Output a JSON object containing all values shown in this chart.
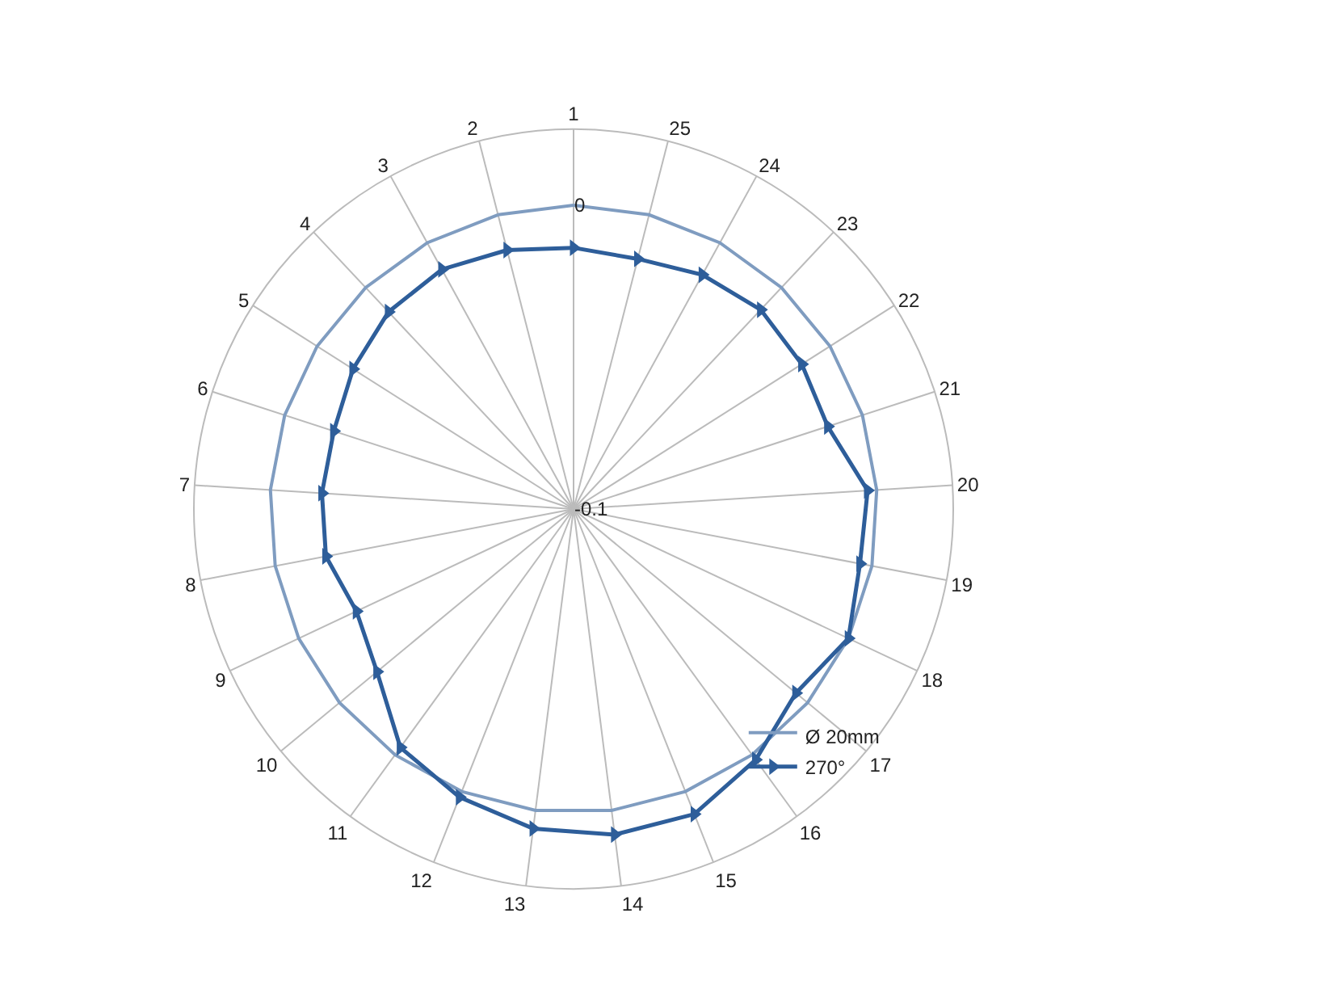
{
  "chart_data": {
    "type": "radar",
    "categories": [
      "1",
      "25",
      "24",
      "23",
      "22",
      "21",
      "20",
      "19",
      "18",
      "17",
      "16",
      "15",
      "14",
      "13",
      "12",
      "11",
      "10",
      "9",
      "8",
      "7",
      "6",
      "5",
      "4",
      "3",
      "2"
    ],
    "series": [
      {
        "name": "Ø 20mm",
        "color": "#7f9cc0",
        "marker": "none",
        "values": [
          0,
          0,
          0,
          0,
          0,
          0,
          0,
          0,
          0,
          0,
          0,
          0,
          0,
          0,
          0,
          0,
          0,
          0,
          0,
          0,
          0,
          0,
          0,
          0,
          0
        ]
      },
      {
        "name": "270°",
        "color": "#2e5e9a",
        "marker": "triangle",
        "values": [
          -0.014,
          -0.015,
          -0.012,
          -0.01,
          -0.011,
          -0.012,
          -0.003,
          -0.004,
          0,
          -0.005,
          0.002,
          0.008,
          0.008,
          0.006,
          0.002,
          -0.003,
          -0.016,
          -0.021,
          -0.017,
          -0.017,
          -0.017,
          -0.014,
          -0.011,
          -0.01,
          -0.012
        ]
      }
    ],
    "ylim": [
      -0.1,
      0.025
    ],
    "yticks": [
      -0.1,
      0
    ],
    "grid": "x",
    "legend": "bottom right"
  }
}
